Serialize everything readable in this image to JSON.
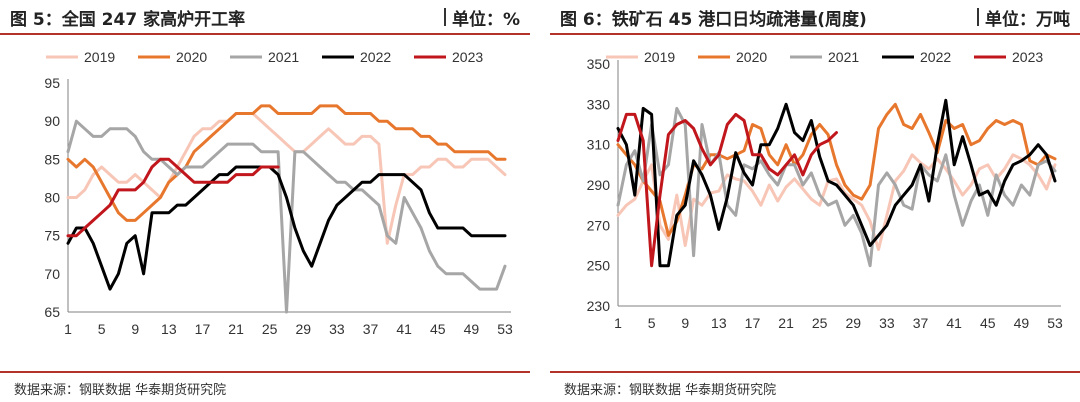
{
  "charts": [
    {
      "title": "图 5：全国 247 家高炉开工率",
      "unit": "单位：%",
      "source": "数据来源：钢联数据 华泰期货研究院"
    },
    {
      "title": "图 6：铁矿石 45 港口日均疏港量(周度)",
      "unit": "单位：万吨",
      "source": "数据来源：钢联数据 华泰期货研究院"
    }
  ],
  "chart_data": [
    {
      "type": "line",
      "title": "图 5：全国 247 家高炉开工率",
      "xlim": [
        1,
        53
      ],
      "xticks": [
        1,
        5,
        9,
        13,
        17,
        21,
        25,
        29,
        33,
        37,
        41,
        45,
        49,
        53
      ],
      "ylim": [
        65,
        95
      ],
      "yticks": [
        65,
        70,
        75,
        80,
        85,
        90,
        95
      ],
      "grid": false,
      "legend": "top",
      "series": [
        {
          "name": "2019",
          "color": "#f7c6b6",
          "values": [
            80,
            80,
            81,
            83,
            84,
            83,
            82,
            82,
            83,
            82,
            81,
            80,
            82,
            84,
            86,
            88,
            89,
            89,
            90,
            90,
            91,
            91,
            91,
            90,
            89,
            88,
            87,
            86,
            86,
            87,
            88,
            89,
            88,
            87,
            87,
            88,
            88,
            87,
            74,
            79,
            83,
            83,
            84,
            84,
            85,
            85,
            84,
            84,
            85,
            85,
            85,
            84,
            83
          ]
        },
        {
          "name": "2020",
          "color": "#e8772e",
          "values": [
            85,
            84,
            85,
            84,
            82,
            80,
            78,
            77,
            77,
            78,
            79,
            80,
            82,
            83,
            84,
            86,
            87,
            88,
            89,
            90,
            91,
            91,
            91,
            92,
            92,
            91,
            91,
            91,
            91,
            91,
            92,
            92,
            92,
            91,
            91,
            91,
            91,
            90,
            90,
            89,
            89,
            89,
            88,
            88,
            87,
            87,
            86,
            86,
            86,
            86,
            86,
            85,
            85
          ]
        },
        {
          "name": "2021",
          "color": "#a6a6a6",
          "values": [
            86,
            90,
            89,
            88,
            88,
            89,
            89,
            89,
            88,
            86,
            85,
            85,
            84,
            83,
            84,
            84,
            84,
            85,
            86,
            87,
            87,
            87,
            87,
            86,
            86,
            86,
            65,
            86,
            86,
            85,
            84,
            83,
            82,
            82,
            81,
            81,
            80,
            79,
            75,
            74,
            80,
            78,
            76,
            73,
            71,
            70,
            70,
            70,
            69,
            68,
            68,
            68,
            71
          ]
        },
        {
          "name": "2022",
          "color": "#000000",
          "values": [
            74,
            76,
            76,
            74,
            71,
            68,
            70,
            74,
            75,
            70,
            78,
            78,
            78,
            79,
            79,
            80,
            81,
            82,
            83,
            83,
            84,
            84,
            84,
            84,
            84,
            83,
            80,
            76,
            73,
            71,
            74,
            77,
            79,
            80,
            81,
            82,
            82,
            83,
            83,
            83,
            83,
            82,
            81,
            78,
            76,
            76,
            76,
            76,
            75,
            75,
            75,
            75,
            75
          ]
        },
        {
          "name": "2023",
          "color": "#c0161c",
          "values": [
            75,
            75,
            76,
            77,
            78,
            79,
            81,
            81,
            81,
            82,
            84,
            85,
            85,
            84,
            83,
            82,
            82,
            82,
            82,
            82,
            83,
            83,
            83,
            84,
            84,
            84,
            null,
            null,
            null,
            null,
            null,
            null,
            null,
            null,
            null,
            null,
            null,
            null,
            null,
            null,
            null,
            null,
            null,
            null,
            null,
            null,
            null,
            null,
            null,
            null,
            null,
            null,
            null
          ]
        }
      ]
    },
    {
      "type": "line",
      "title": "图 6：铁矿石 45 港口日均疏港量(周度)",
      "xlim": [
        1,
        53
      ],
      "xticks": [
        1,
        5,
        9,
        13,
        17,
        21,
        25,
        29,
        33,
        37,
        41,
        45,
        49,
        53
      ],
      "ylim": [
        230,
        350
      ],
      "yticks": [
        230,
        250,
        270,
        290,
        310,
        330,
        350
      ],
      "grid": false,
      "legend": "top",
      "series": [
        {
          "name": "2019",
          "color": "#f7c6b6",
          "values": [
            275,
            280,
            283,
            292,
            300,
            270,
            263,
            285,
            260,
            283,
            280,
            286,
            287,
            295,
            293,
            292,
            287,
            280,
            290,
            282,
            289,
            293,
            288,
            283,
            280,
            292,
            293,
            286,
            283,
            280,
            272,
            258,
            275,
            292,
            297,
            305,
            301,
            298,
            303,
            298,
            292,
            285,
            290,
            298,
            300,
            293,
            298,
            305,
            303,
            300,
            295,
            288,
            300
          ]
        },
        {
          "name": "2020",
          "color": "#e8772e",
          "values": [
            310,
            305,
            300,
            292,
            287,
            282,
            265,
            272,
            285,
            300,
            298,
            305,
            305,
            303,
            305,
            307,
            320,
            318,
            305,
            300,
            310,
            300,
            305,
            315,
            320,
            315,
            300,
            290,
            285,
            283,
            290,
            318,
            325,
            330,
            320,
            318,
            325,
            316,
            306,
            322,
            318,
            320,
            310,
            312,
            318,
            322,
            320,
            322,
            320,
            302,
            300,
            305,
            303
          ]
        },
        {
          "name": "2021",
          "color": "#a6a6a6",
          "values": [
            280,
            300,
            307,
            292,
            320,
            295,
            300,
            328,
            320,
            255,
            320,
            300,
            306,
            280,
            275,
            300,
            298,
            302,
            295,
            290,
            300,
            300,
            290,
            296,
            285,
            280,
            282,
            270,
            275,
            266,
            250,
            290,
            296,
            290,
            280,
            278,
            300,
            295,
            292,
            305,
            285,
            270,
            282,
            290,
            275,
            295,
            285,
            280,
            290,
            285,
            300,
            302,
            297
          ]
        },
        {
          "name": "2022",
          "color": "#000000",
          "values": [
            318,
            310,
            285,
            328,
            325,
            250,
            250,
            275,
            280,
            302,
            295,
            285,
            268,
            284,
            306,
            296,
            290,
            310,
            310,
            318,
            330,
            316,
            312,
            322,
            304,
            292,
            290,
            285,
            280,
            270,
            260,
            265,
            270,
            280,
            285,
            290,
            300,
            282,
            310,
            332,
            300,
            314,
            300,
            285,
            287,
            280,
            292,
            300,
            302,
            305,
            310,
            305,
            292
          ]
        },
        {
          "name": "2023",
          "color": "#c0161c",
          "values": [
            312,
            325,
            325,
            312,
            250,
            285,
            315,
            320,
            322,
            318,
            308,
            300,
            305,
            320,
            325,
            322,
            305,
            305,
            298,
            295,
            300,
            305,
            295,
            305,
            310,
            312,
            316,
            null,
            null,
            null,
            null,
            null,
            null,
            null,
            null,
            null,
            null,
            null,
            null,
            null,
            null,
            null,
            null,
            null,
            null,
            null,
            null,
            null,
            null,
            null,
            null,
            null,
            null
          ]
        }
      ]
    }
  ]
}
